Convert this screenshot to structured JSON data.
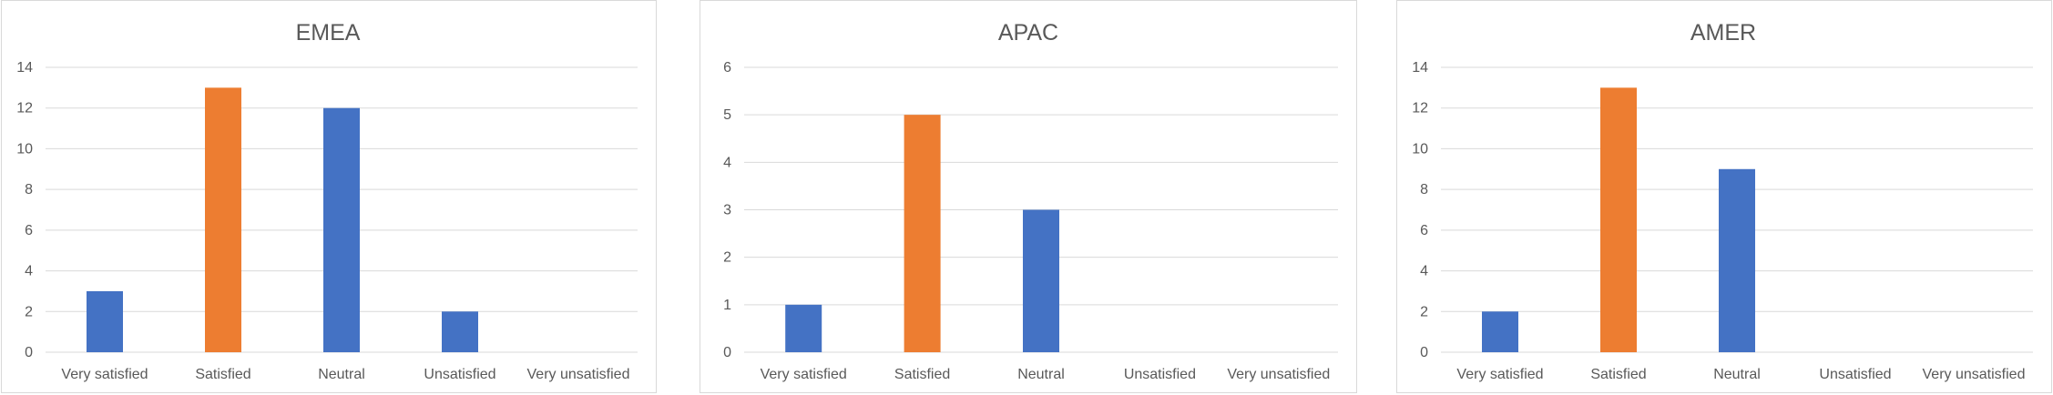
{
  "chart_data": [
    {
      "type": "bar",
      "title": "EMEA",
      "categories": [
        "Very satisfied",
        "Satisfied",
        "Neutral",
        "Unsatisfied",
        "Very unsatisfied"
      ],
      "values": [
        3,
        13,
        12,
        2,
        0
      ],
      "highlight_index": 1,
      "ylim": [
        0,
        14
      ],
      "yticks": [
        0,
        2,
        4,
        6,
        8,
        10,
        12,
        14
      ],
      "grid": true,
      "xlabel": "",
      "ylabel": ""
    },
    {
      "type": "bar",
      "title": "APAC",
      "categories": [
        "Very satisfied",
        "Satisfied",
        "Neutral",
        "Unsatisfied",
        "Very unsatisfied"
      ],
      "values": [
        1,
        5,
        3,
        0,
        0
      ],
      "highlight_index": 1,
      "ylim": [
        0,
        6
      ],
      "yticks": [
        0,
        1,
        2,
        3,
        4,
        5,
        6
      ],
      "grid": true,
      "xlabel": "",
      "ylabel": ""
    },
    {
      "type": "bar",
      "title": "AMER",
      "categories": [
        "Very satisfied",
        "Satisfied",
        "Neutral",
        "Unsatisfied",
        "Very unsatisfied"
      ],
      "values": [
        2,
        13,
        9,
        0,
        0
      ],
      "highlight_index": 1,
      "ylim": [
        0,
        14
      ],
      "yticks": [
        0,
        2,
        4,
        6,
        8,
        10,
        12,
        14
      ],
      "grid": true,
      "xlabel": "",
      "ylabel": ""
    }
  ],
  "colors": {
    "bar": "#4472C4",
    "highlight": "#ED7D31",
    "grid": "#D9D9D9",
    "text": "#595959",
    "border": "#D9D9D9"
  }
}
